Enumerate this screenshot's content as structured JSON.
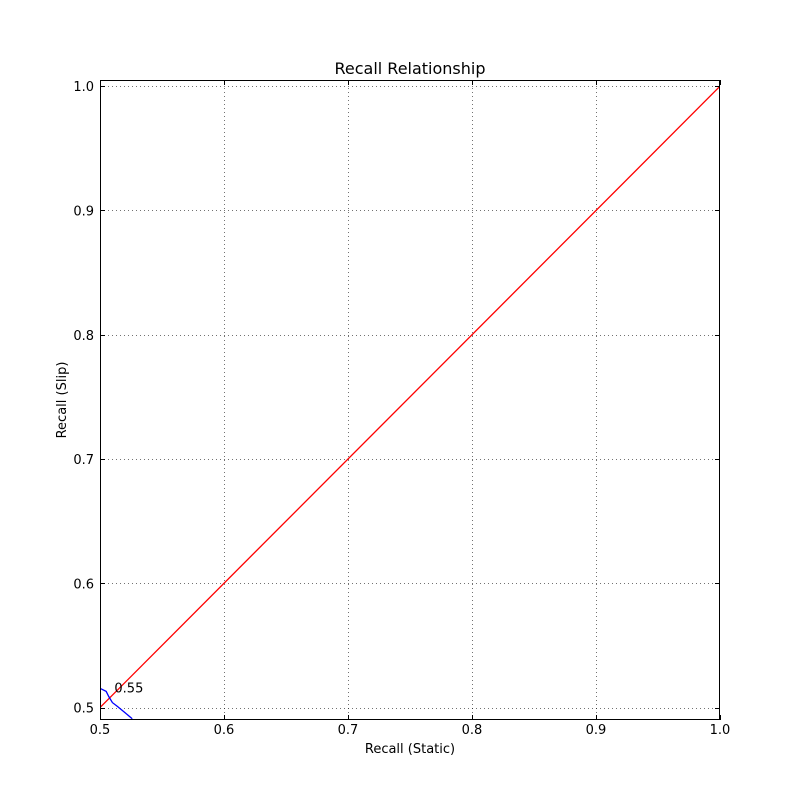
{
  "chart_data": {
    "type": "line",
    "title": "Recall Relationship",
    "xlabel": "Recall (Static)",
    "ylabel": "Recall (Slip)",
    "xlim": [
      0.5,
      1.0
    ],
    "ylim": [
      0.49,
      1.005
    ],
    "xticks": [
      0.5,
      0.6,
      0.7,
      0.8,
      0.9,
      1.0
    ],
    "yticks": [
      0.5,
      0.6,
      0.7,
      0.8,
      0.9,
      1.0
    ],
    "xtick_labels": [
      "0.5",
      "0.6",
      "0.7",
      "0.8",
      "0.9",
      "1.0"
    ],
    "ytick_labels": [
      "0.5",
      "0.6",
      "0.7",
      "0.8",
      "0.9",
      "1.0"
    ],
    "grid": true,
    "series": [
      {
        "color": "#ff0000",
        "x": [
          0.5,
          1.0
        ],
        "y": [
          0.5,
          1.0
        ]
      },
      {
        "color": "#0000ff",
        "x": [
          0.5,
          0.505,
          0.507,
          0.51,
          0.514,
          0.52,
          0.526
        ],
        "y": [
          0.5155,
          0.513,
          0.509,
          0.504,
          0.501,
          0.496,
          0.491
        ]
      }
    ],
    "annotations": [
      {
        "text": "0.55",
        "x": 0.51,
        "y": 0.508
      }
    ]
  }
}
